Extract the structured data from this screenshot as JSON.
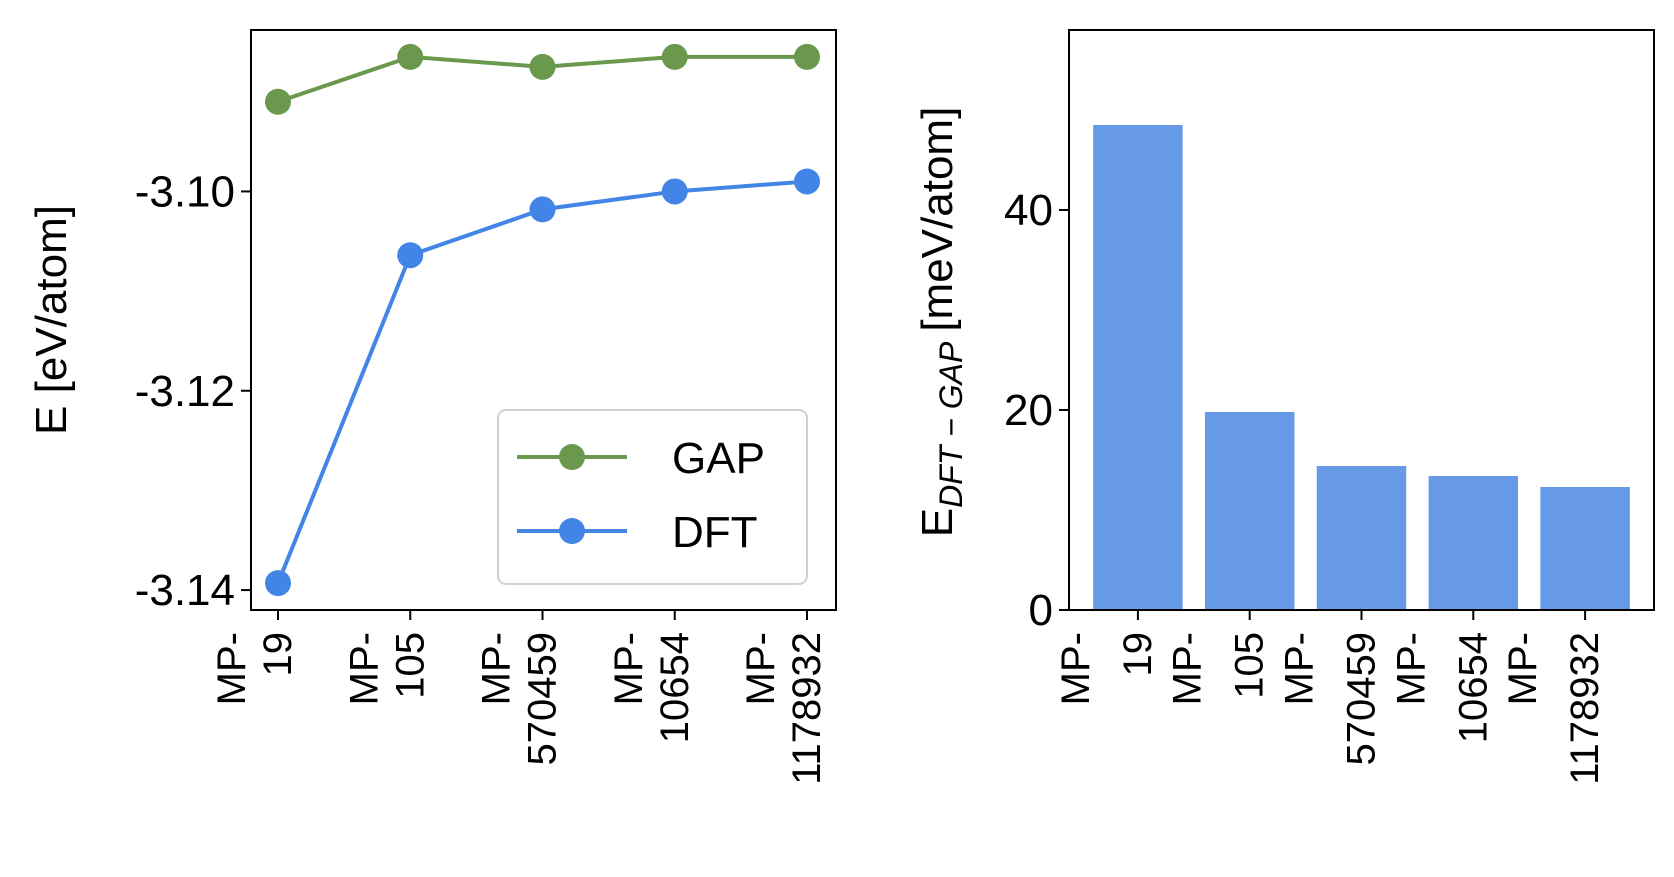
{
  "chart_data": [
    {
      "type": "line",
      "categories": [
        "MP-19",
        "MP-105",
        "MP-570459",
        "MP-10654",
        "MP-1178932"
      ],
      "category_lines": [
        [
          "MP-",
          "19"
        ],
        [
          "MP-",
          "105"
        ],
        [
          "MP-",
          "570459"
        ],
        [
          "MP-",
          "10654"
        ],
        [
          "MP-",
          "1178932"
        ]
      ],
      "series": [
        {
          "name": "GAP",
          "color": "#6a994e",
          "values": [
            -3.091,
            -3.0865,
            -3.0875,
            -3.0865,
            -3.0865
          ]
        },
        {
          "name": "DFT",
          "color": "#4285e6",
          "values": [
            -3.1393,
            -3.1064,
            -3.1018,
            -3.1,
            -3.099
          ]
        }
      ],
      "ylabel": "E [eV/atom]",
      "ylim": [
        -3.142,
        -3.0838
      ],
      "yticks": [
        -3.1,
        -3.12,
        -3.14
      ],
      "ytick_labels": [
        "-3.10",
        "-3.12",
        "-3.14"
      ],
      "legend": "lower-right"
    },
    {
      "type": "bar",
      "categories": [
        "MP-19",
        "MP-105",
        "MP-570459",
        "MP-10654",
        "MP-1178932"
      ],
      "category_lines": [
        [
          "MP-",
          "19"
        ],
        [
          "MP-",
          "105"
        ],
        [
          "MP-",
          "570459"
        ],
        [
          "MP-",
          "10654"
        ],
        [
          "MP-",
          "1178932"
        ]
      ],
      "values": [
        48.5,
        19.8,
        14.4,
        13.4,
        12.3
      ],
      "color": "#6699e6",
      "ylabel_main": "E",
      "ylabel_sub": "DFT − GAP",
      "ylabel_unit": "[meV/atom]",
      "ylim": [
        0,
        58
      ],
      "yticks": [
        0,
        20,
        40
      ],
      "ytick_labels": [
        "0",
        "20",
        "40"
      ]
    }
  ]
}
